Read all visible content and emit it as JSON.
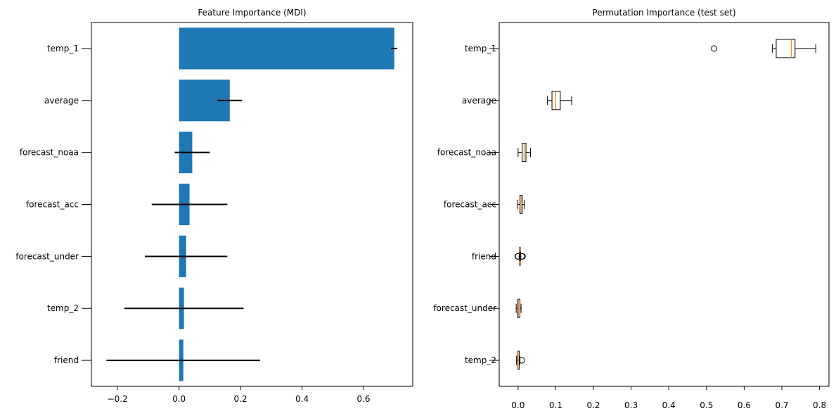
{
  "chart_data": [
    {
      "type": "bar",
      "orientation": "horizontal",
      "title": "Feature Importance (MDI)",
      "xlabel": "",
      "ylabel": "",
      "xlim": [
        -0.285,
        0.76
      ],
      "xticks": [
        -0.2,
        0.0,
        0.2,
        0.4,
        0.6
      ],
      "xtick_labels": [
        "−0.2",
        "0.0",
        "0.2",
        "0.4",
        "0.6"
      ],
      "categories": [
        "temp_1",
        "average",
        "forecast_noaa",
        "forecast_acc",
        "forecast_under",
        "temp_2",
        "friend"
      ],
      "values": [
        0.7,
        0.165,
        0.043,
        0.034,
        0.023,
        0.016,
        0.014
      ],
      "errors": [
        0.01,
        0.04,
        0.057,
        0.123,
        0.134,
        0.194,
        0.25
      ],
      "bar_color": "#1f77b4",
      "error_color": "#000000",
      "grid": false
    },
    {
      "type": "boxplot",
      "orientation": "horizontal",
      "title": "Permutation Importance (test set)",
      "xlabel": "",
      "ylabel": "",
      "xlim": [
        -0.05,
        0.825
      ],
      "xticks": [
        0.0,
        0.1,
        0.2,
        0.3,
        0.4,
        0.5,
        0.6,
        0.7,
        0.8
      ],
      "xtick_labels": [
        "0.0",
        "0.1",
        "0.2",
        "0.3",
        "0.4",
        "0.5",
        "0.6",
        "0.7",
        "0.8"
      ],
      "categories": [
        "temp_1",
        "average",
        "forecast_noaa",
        "forecast_acc",
        "friend",
        "forecast_under",
        "temp_2"
      ],
      "boxes": [
        {
          "min": 0.675,
          "q1": 0.685,
          "median": 0.725,
          "q3": 0.735,
          "max": 0.79,
          "outliers": [
            0.52
          ]
        },
        {
          "min": 0.078,
          "q1": 0.09,
          "median": 0.1,
          "q3": 0.112,
          "max": 0.142,
          "outliers": []
        },
        {
          "min": 0.0,
          "q1": 0.011,
          "median": 0.016,
          "q3": 0.021,
          "max": 0.033,
          "outliers": []
        },
        {
          "min": -0.001,
          "q1": 0.005,
          "median": 0.008,
          "q3": 0.011,
          "max": 0.017,
          "outliers": []
        },
        {
          "min": 0.003,
          "q1": 0.004,
          "median": 0.005,
          "q3": 0.006,
          "max": 0.007,
          "outliers": [
            -0.001,
            0.0,
            0.01,
            0.012
          ]
        },
        {
          "min": -0.005,
          "q1": -0.001,
          "median": 0.001,
          "q3": 0.005,
          "max": 0.008,
          "outliers": []
        },
        {
          "min": -0.004,
          "q1": -0.001,
          "median": 0.0,
          "q3": 0.003,
          "max": 0.005,
          "outliers": [
            0.01
          ]
        }
      ],
      "box_face_color": "#ffffff",
      "median_color": "#ff7f0e",
      "grid": false
    }
  ]
}
